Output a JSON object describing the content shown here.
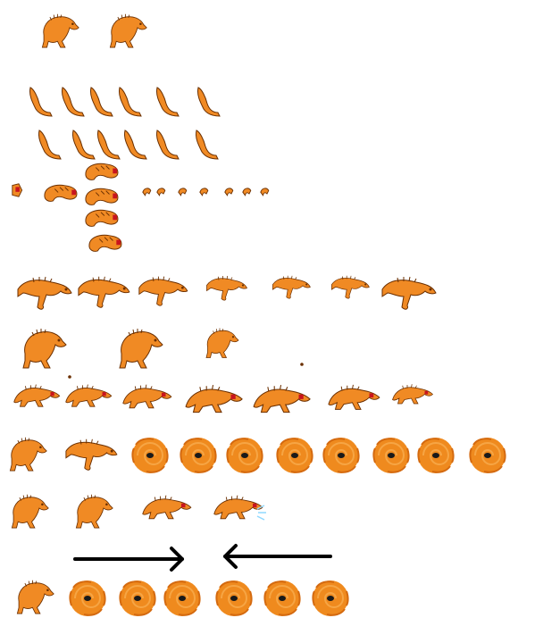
{
  "sheet": {
    "background": "#ffffff",
    "colors": {
      "body": "#f08a24",
      "body_light": "#f6a544",
      "outline": "#6b2f00",
      "mouth": "#c8141e",
      "vortex": "#ef8a1e",
      "arrow": "#000000",
      "spark": "#8fd8ff"
    },
    "rows": [
      {
        "name": "crouch-idle",
        "sprites": [
          "creature-crouch",
          "creature-crouch"
        ]
      },
      {
        "name": "limb-a",
        "sprites": [
          "limb",
          "limb",
          "limb",
          "limb",
          "limb",
          "limb"
        ]
      },
      {
        "name": "limb-b",
        "sprites": [
          "limb",
          "limb",
          "limb",
          "limb",
          "limb",
          "limb"
        ]
      },
      {
        "name": "curled-and-bits",
        "sprites": [
          "head-bit",
          "curled-body",
          "curled-body",
          "curled-body",
          "curled-body",
          "curled-body",
          "tail-bit",
          "tail-bit",
          "tail-bit",
          "tail-bit",
          "tail-bit",
          "tail-bit",
          "tail-bit"
        ]
      },
      {
        "name": "leap",
        "sprites": [
          "creature-leap",
          "creature-leap",
          "creature-leap",
          "creature-leap",
          "creature-leap",
          "creature-leap",
          "creature-leap"
        ]
      },
      {
        "name": "land",
        "sprites": [
          "creature-crouch",
          "creature-crouch",
          "creature-crouch"
        ]
      },
      {
        "name": "crawl",
        "sprites": [
          "creature-crawl",
          "creature-crawl",
          "creature-crawl",
          "creature-crawl",
          "creature-crawl",
          "creature-crawl",
          "creature-crawl"
        ]
      },
      {
        "name": "vortex-spin",
        "sprites": [
          "creature-crouch",
          "creature-leap",
          "vortex",
          "vortex",
          "vortex",
          "vortex",
          "vortex",
          "vortex",
          "vortex",
          "vortex"
        ]
      },
      {
        "name": "attack",
        "sprites": [
          "creature-crouch",
          "creature-crouch",
          "creature-crawl",
          "creature-crawl"
        ]
      },
      {
        "name": "direction-arrows",
        "arrows": [
          "right",
          "left"
        ]
      },
      {
        "name": "vortex-end",
        "sprites": [
          "creature-crouch",
          "vortex",
          "vortex",
          "vortex",
          "vortex",
          "vortex",
          "vortex"
        ]
      }
    ]
  }
}
